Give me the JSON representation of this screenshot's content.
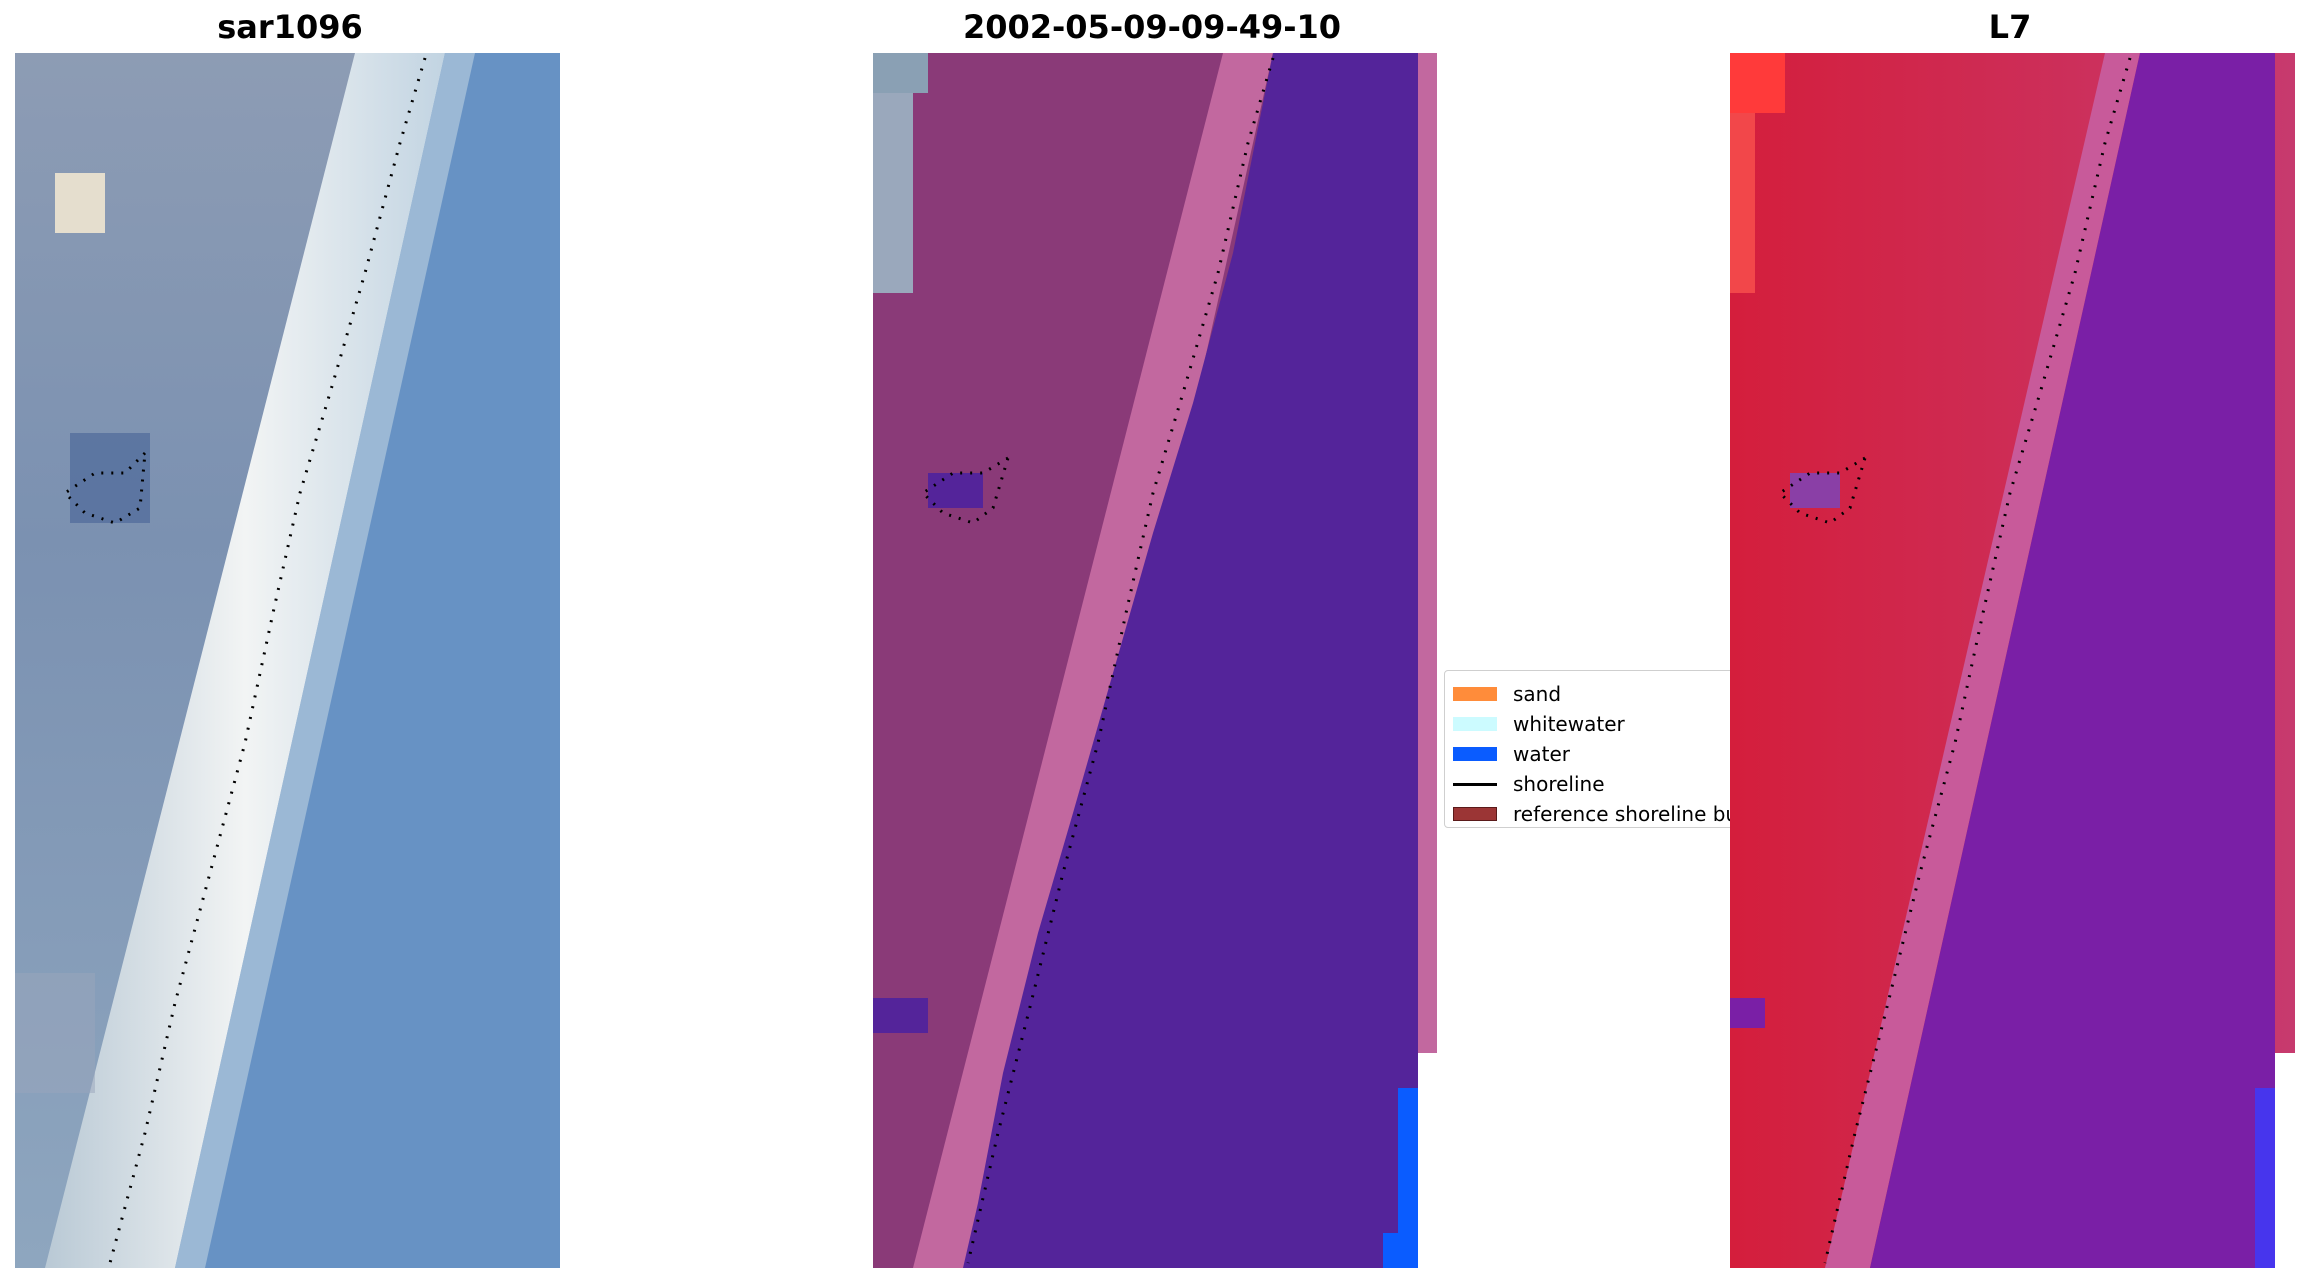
{
  "panels": [
    {
      "title": "sar1096"
    },
    {
      "title": "2002-05-09-09-49-10"
    },
    {
      "title": "L7"
    }
  ],
  "legend": {
    "entries": [
      {
        "label": "sand",
        "color": "#ff8c3a",
        "kind": "patch"
      },
      {
        "label": "whitewater",
        "color": "#ccfbff",
        "kind": "patch"
      },
      {
        "label": "water",
        "color": "#0a5cff",
        "kind": "patch"
      },
      {
        "label": "shoreline",
        "color": "#000000",
        "kind": "line"
      },
      {
        "label": "reference shoreline buffer",
        "color": "#9b3535",
        "kind": "patch"
      }
    ]
  },
  "colors": {
    "rgb_land": "#7f96b4",
    "rgb_beach": "#eef1f2",
    "rgb_sea": "#6792c4",
    "class_land": "#8a3a78",
    "class_sand": "#c2689f",
    "class_water": "#54249a",
    "class_water_blue": "#0a5cff",
    "index_land": "#c81e45",
    "index_sea": "#7a1fa6"
  }
}
